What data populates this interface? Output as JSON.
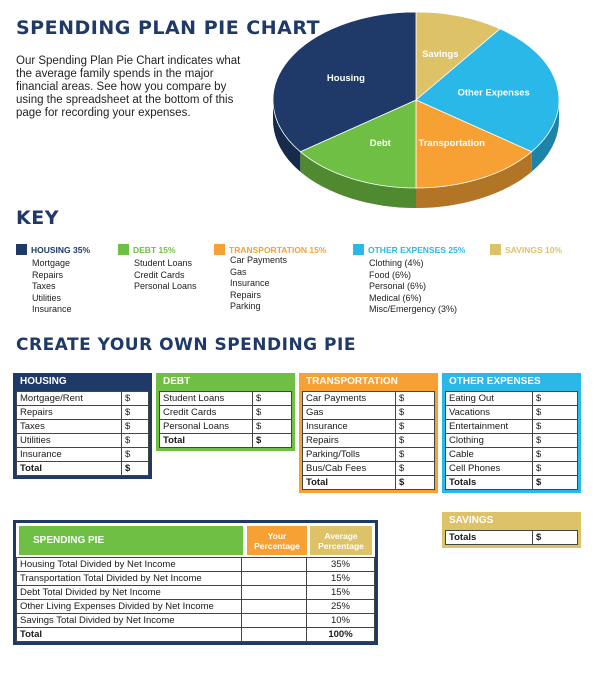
{
  "page": {
    "title": "SPENDING PLAN PIE CHART",
    "intro": "Our Spending Plan Pie Chart indicates what the average family spends in the major financial areas. See how you compare by using the spreadsheet at the bottom of this page for recording your expenses.",
    "key_title": "KEY",
    "create_title": "CREATE YOUR OWN SPENDING PIE"
  },
  "colors": {
    "housing": "#1f3a68",
    "debt": "#6ebf44",
    "transportation": "#f7a134",
    "other": "#2ab8e8",
    "savings": "#dec267",
    "title": "#1f3a68"
  },
  "chart_data": {
    "type": "pie",
    "categories": [
      "Housing",
      "Other Expenses",
      "Transportation",
      "Debt",
      "Savings"
    ],
    "values": [
      35,
      25,
      15,
      15,
      10
    ],
    "title": "",
    "labels": {
      "housing": "Housing",
      "savings": "Savings",
      "other": "Other Expenses",
      "transportation": "Transportation",
      "debt": "Debt"
    }
  },
  "key": [
    {
      "id": "housing",
      "head": "HOUSING 35%",
      "items": [
        "Mortgage",
        "Repairs",
        "Taxes",
        "Utilities",
        "Insurance"
      ]
    },
    {
      "id": "debt",
      "head": "DEBT 15%",
      "items": [
        "Student Loans",
        "Credit Cards",
        "Personal Loans"
      ]
    },
    {
      "id": "transportation",
      "head": "TRANSPORTATION 15%",
      "items": [
        "Car Payments",
        "Gas",
        "Insurance",
        "Repairs",
        "Parking"
      ]
    },
    {
      "id": "other",
      "head": "OTHER EXPENSES 25%",
      "items": [
        "Clothing (4%)",
        "Food (6%)",
        "Personal (6%)",
        "Medical (6%)",
        "Misc/Emergency (3%)"
      ]
    },
    {
      "id": "savings",
      "head": "SAVINGS 10%",
      "items": []
    }
  ],
  "tables": {
    "housing": {
      "head": "HOUSING",
      "rows": [
        "Mortgage/Rent",
        "Repairs",
        "Taxes",
        "Utilities",
        "Insurance"
      ],
      "total": "Total",
      "cur": "$"
    },
    "debt": {
      "head": "DEBT",
      "rows": [
        "Student Loans",
        "Credit Cards",
        "Personal Loans"
      ],
      "total": "Total",
      "cur": "$"
    },
    "transportation": {
      "head": "TRANSPORTATION",
      "rows": [
        "Car Payments",
        "Gas",
        "Insurance",
        "Repairs",
        "Parking/Tolls",
        "Bus/Cab Fees"
      ],
      "total": "Total",
      "cur": "$"
    },
    "other": {
      "head": "OTHER EXPENSES",
      "rows": [
        "Eating Out",
        "Vacations",
        "Entertainment",
        "Clothing",
        "Cable",
        "Cell Phones"
      ],
      "total": "Totals",
      "cur": "$"
    },
    "savings": {
      "head": "SAVINGS",
      "total": "Totals",
      "cur": "$"
    }
  },
  "spending_pie": {
    "head": "SPENDING PIE",
    "col_your": "Your Percentage",
    "col_avg": "Average Percentage",
    "rows": [
      {
        "label": "Housing Total Divided by Net Income",
        "avg": "35%"
      },
      {
        "label": "Transportation Total Divided by Net Income",
        "avg": "15%"
      },
      {
        "label": "Debt Total Divided by Net Income",
        "avg": "15%"
      },
      {
        "label": "Other Living Expenses Divided by Net Income",
        "avg": "25%"
      },
      {
        "label": "Savings Total Divided by Net Income",
        "avg": "10%"
      }
    ],
    "total_label": "Total",
    "total_avg": "100%"
  }
}
